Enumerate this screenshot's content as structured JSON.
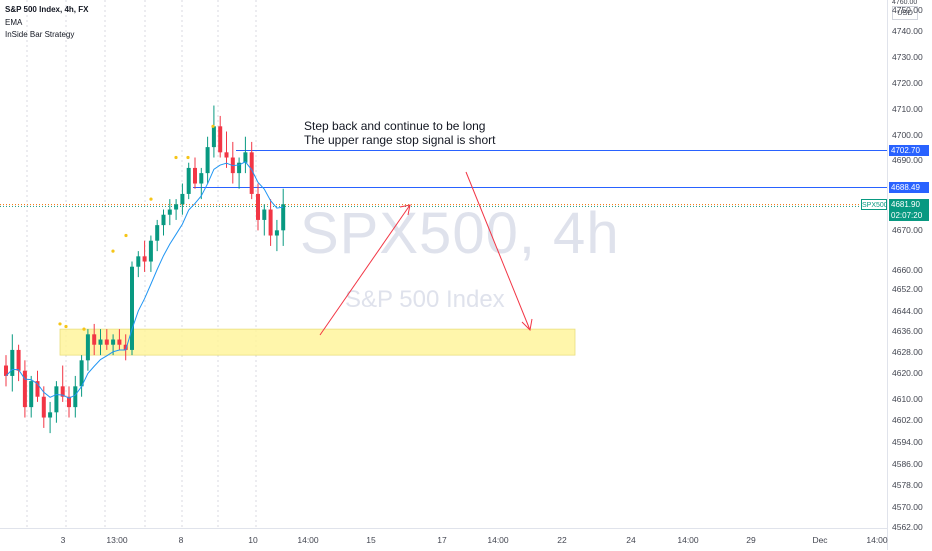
{
  "legend": {
    "title": "S&P 500 Index, 4h, FX",
    "indicator_1": "EMA",
    "indicator_2": "InSide Bar Strategy"
  },
  "watermark": {
    "symbol_tf": "SPX500, 4h",
    "name": "S&P 500 Index"
  },
  "annotation": {
    "line1": "Step back and continue to be long",
    "line2": "The upper range stop signal is short"
  },
  "price_axis": {
    "currency": "USD",
    "labels": [
      "4750.00",
      "4740.00",
      "4730.00",
      "4720.00",
      "4710.00",
      "4700.00",
      "4690.00",
      "4670.00",
      "4660.00",
      "4652.00",
      "4644.00",
      "4636.00",
      "4628.00",
      "4620.00",
      "4610.00",
      "4602.00",
      "4594.00",
      "4586.00",
      "4578.00",
      "4570.00",
      "4562.00"
    ],
    "top_partial": "4760.00"
  },
  "price_badges": {
    "upper": "4702.70",
    "lower": "4688.49",
    "current": "4681.90",
    "countdown": "02:07:20",
    "symbol": "SPX500"
  },
  "time_axis": {
    "labels": [
      "3",
      "13:00",
      "8",
      "10",
      "14:00",
      "15",
      "17",
      "14:00",
      "22",
      "24",
      "14:00",
      "29",
      "Dec",
      "14:00"
    ]
  },
  "colors": {
    "bull": "#089981",
    "bear": "#f23645",
    "ema": "#2196f3",
    "level_line": "#2962ff",
    "zone": "#fff59d",
    "arrow": "#f23645",
    "current_price": "#089981"
  },
  "chart_data": {
    "type": "candlestick",
    "timeframe": "4h",
    "ohlc": [
      [
        4620,
        4624,
        4612,
        4616
      ],
      [
        4616,
        4632,
        4610,
        4626
      ],
      [
        4626,
        4628,
        4614,
        4618
      ],
      [
        4618,
        4622,
        4600,
        4604
      ],
      [
        4604,
        4616,
        4600,
        4614
      ],
      [
        4614,
        4618,
        4606,
        4608
      ],
      [
        4608,
        4612,
        4596,
        4600
      ],
      [
        4600,
        4606,
        4594,
        4602
      ],
      [
        4602,
        4614,
        4598,
        4612
      ],
      [
        4612,
        4620,
        4606,
        4608
      ],
      [
        4608,
        4612,
        4600,
        4604
      ],
      [
        4604,
        4616,
        4600,
        4612
      ],
      [
        4612,
        4624,
        4608,
        4622
      ],
      [
        4622,
        4634,
        4618,
        4632
      ],
      [
        4632,
        4636,
        4624,
        4628
      ],
      [
        4628,
        4634,
        4624,
        4630
      ],
      [
        4630,
        4634,
        4626,
        4628
      ],
      [
        4628,
        4632,
        4624,
        4630
      ],
      [
        4630,
        4634,
        4626,
        4628
      ],
      [
        4628,
        4632,
        4622,
        4626
      ],
      [
        4626,
        4660,
        4624,
        4658
      ],
      [
        4658,
        4664,
        4654,
        4662
      ],
      [
        4662,
        4668,
        4656,
        4660
      ],
      [
        4660,
        4670,
        4656,
        4668
      ],
      [
        4668,
        4676,
        4664,
        4674
      ],
      [
        4674,
        4680,
        4670,
        4678
      ],
      [
        4678,
        4684,
        4674,
        4680
      ],
      [
        4680,
        4684,
        4676,
        4682
      ],
      [
        4682,
        4690,
        4678,
        4686
      ],
      [
        4686,
        4698,
        4684,
        4696
      ],
      [
        4696,
        4700,
        4688,
        4690
      ],
      [
        4690,
        4696,
        4684,
        4694
      ],
      [
        4694,
        4708,
        4690,
        4704
      ],
      [
        4704,
        4720,
        4700,
        4712
      ],
      [
        4712,
        4716,
        4700,
        4702
      ],
      [
        4702,
        4710,
        4696,
        4700
      ],
      [
        4700,
        4706,
        4690,
        4694
      ],
      [
        4694,
        4700,
        4688,
        4698
      ],
      [
        4698,
        4708,
        4694,
        4702
      ],
      [
        4702,
        4706,
        4684,
        4686
      ],
      [
        4686,
        4690,
        4672,
        4676
      ],
      [
        4676,
        4682,
        4670,
        4680
      ],
      [
        4680,
        4684,
        4666,
        4670
      ],
      [
        4670,
        4676,
        4664,
        4672
      ],
      [
        4672,
        4688,
        4666,
        4682
      ]
    ],
    "levels": {
      "upper": 4702.7,
      "lower": 4688.49,
      "current": 4681.9
    },
    "zone": {
      "low": 4624,
      "high": 4634
    },
    "ylim": [
      4558,
      4762
    ]
  }
}
